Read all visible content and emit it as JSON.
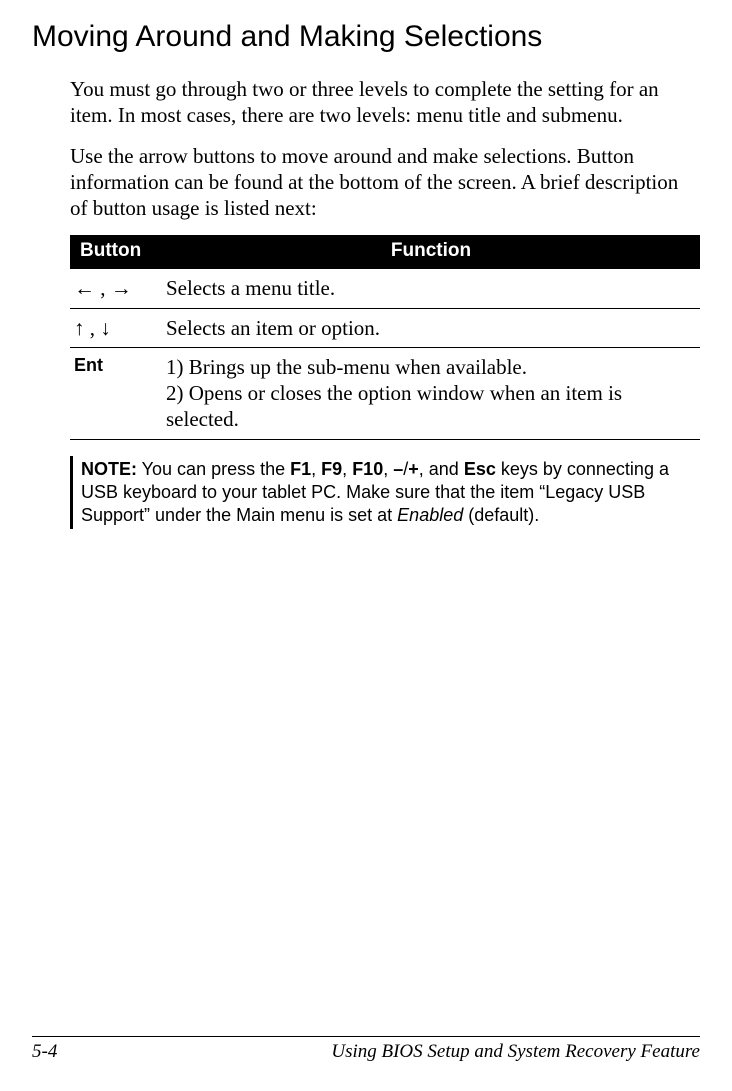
{
  "heading": "Moving Around and Making Selections",
  "para1": "You must go through two or three levels to complete the setting for an item. In most cases, there are two levels: menu title and submenu.",
  "para2": "Use the arrow buttons to move around and make selections. Button information can be found at the bottom of the screen. A brief description of button usage is listed next:",
  "table": {
    "head_button": "Button",
    "head_function": "Function",
    "rows": [
      {
        "button": "← , →",
        "function": "Selects a menu title."
      },
      {
        "button": "↑ , ↓",
        "function": "Selects an item or option."
      },
      {
        "button": "Ent",
        "function": "1) Brings up the sub-menu when available.\n2) Opens or closes the option window when an item is selected."
      }
    ]
  },
  "note": {
    "label": "NOTE:",
    "t1": " You can press the ",
    "k1": "F1",
    "c1": ", ",
    "k2": "F9",
    "c2": ", ",
    "k3": "F10",
    "c3": ", ",
    "k4": "–",
    "c4": "/",
    "k5": "+",
    "c5": ", and ",
    "k6": "Esc",
    "t2": " keys by connecting a USB keyboard to your tablet PC. Make sure that the item “Legacy USB Support” under the Main menu is set at ",
    "em": "Enabled",
    "t3": " (default)."
  },
  "footer": {
    "page": "5-4",
    "chapter": "Using BIOS Setup and System Recovery Feature"
  },
  "colors": {
    "text": "#000000",
    "background": "#ffffff",
    "table_header_bg": "#000000",
    "table_header_fg": "#ffffff",
    "rule": "#000000"
  }
}
